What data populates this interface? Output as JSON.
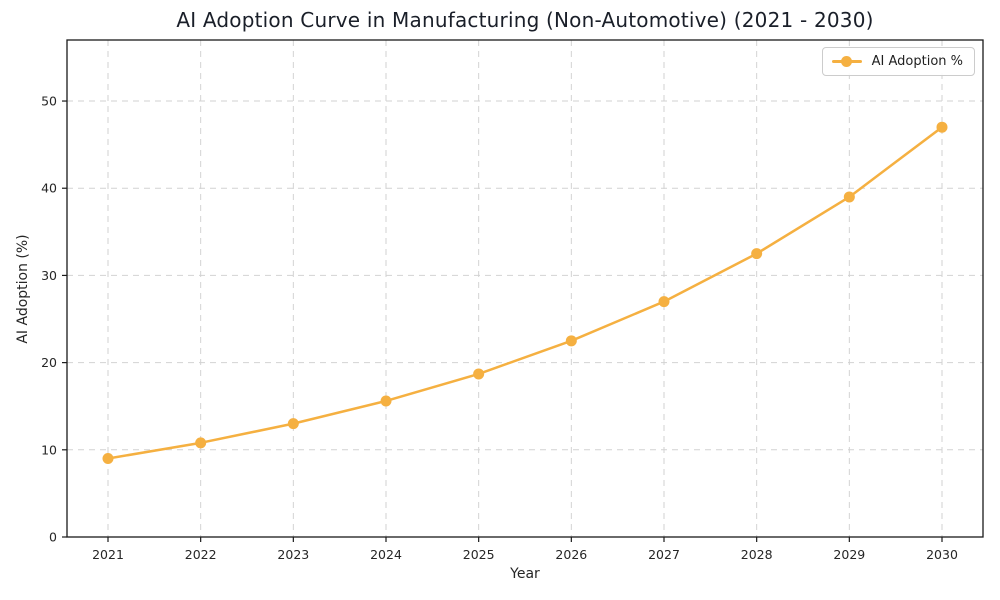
{
  "chart_data": {
    "type": "line",
    "title": "AI Adoption Curve in Manufacturing (Non-Automotive) (2021 - 2030)",
    "xlabel": "Year",
    "ylabel": "AI Adoption (%)",
    "categories": [
      "2021",
      "2022",
      "2023",
      "2024",
      "2025",
      "2026",
      "2027",
      "2028",
      "2029",
      "2030"
    ],
    "series": [
      {
        "name": "AI Adoption %",
        "values": [
          9.0,
          10.8,
          13.0,
          15.6,
          18.7,
          22.5,
          27.0,
          32.5,
          39.0,
          47.0
        ]
      }
    ],
    "ylim": [
      0,
      57
    ],
    "yticks": [
      0,
      10,
      20,
      30,
      40,
      50
    ],
    "grid": true,
    "grid_style": "dashed",
    "legend_position": "upper-right",
    "marker": "circle"
  },
  "colors": {
    "line": "#F5B041",
    "marker": "#F5B041",
    "grid": "#d2d2d2",
    "spine": "#1a1a1a",
    "tick_text": "#262626",
    "title_text": "#1a1f29",
    "legend_border": "#cccccc"
  }
}
